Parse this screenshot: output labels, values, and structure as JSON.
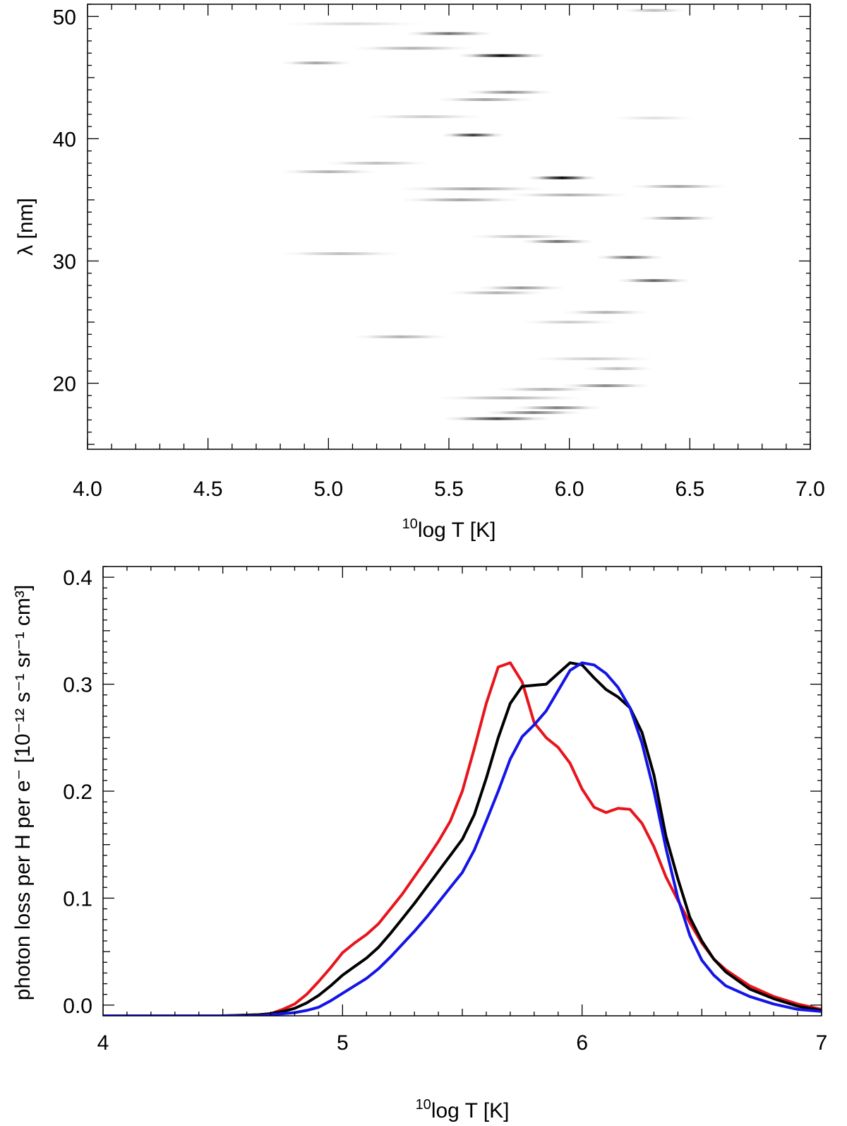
{
  "chart_data": [
    {
      "type": "heatmap",
      "title": "",
      "xlabel": {
        "superscript": "10",
        "text": "log T [K]"
      },
      "ylabel": "λ [nm]",
      "xlim": [
        4.0,
        7.0
      ],
      "ylim": [
        14.6,
        51.0
      ],
      "x_tick_labels": [
        "4.0",
        "4.5",
        "5.0",
        "5.5",
        "6.0",
        "6.5",
        "7.0"
      ],
      "x_ticks": [
        4.0,
        4.5,
        5.0,
        5.5,
        6.0,
        6.5,
        7.0
      ],
      "y_tick_labels": [
        "20",
        "30",
        "40",
        "50"
      ],
      "y_ticks": [
        20,
        30,
        40,
        50
      ],
      "colormap": "white-to-black (reversed gray)",
      "emission_lines": [
        {
          "wavelength": 50.5,
          "t_center": 6.35,
          "t_width": 0.14,
          "intensity": 0.25
        },
        {
          "wavelength": 49.4,
          "t_center": 5.1,
          "t_width": 0.3,
          "intensity": 0.15
        },
        {
          "wavelength": 48.6,
          "t_center": 5.5,
          "t_width": 0.18,
          "intensity": 0.55
        },
        {
          "wavelength": 47.4,
          "t_center": 5.35,
          "t_width": 0.25,
          "intensity": 0.3
        },
        {
          "wavelength": 46.8,
          "t_center": 5.72,
          "t_width": 0.18,
          "intensity": 0.95
        },
        {
          "wavelength": 46.2,
          "t_center": 4.95,
          "t_width": 0.15,
          "intensity": 0.35
        },
        {
          "wavelength": 43.8,
          "t_center": 5.75,
          "t_width": 0.18,
          "intensity": 0.45
        },
        {
          "wavelength": 43.2,
          "t_center": 5.65,
          "t_width": 0.2,
          "intensity": 0.35
        },
        {
          "wavelength": 41.8,
          "t_center": 5.4,
          "t_width": 0.25,
          "intensity": 0.2
        },
        {
          "wavelength": 41.7,
          "t_center": 6.35,
          "t_width": 0.18,
          "intensity": 0.12
        },
        {
          "wavelength": 40.3,
          "t_center": 5.6,
          "t_width": 0.13,
          "intensity": 0.75
        },
        {
          "wavelength": 38.0,
          "t_center": 5.2,
          "t_width": 0.22,
          "intensity": 0.25
        },
        {
          "wavelength": 37.3,
          "t_center": 5.0,
          "t_width": 0.2,
          "intensity": 0.3
        },
        {
          "wavelength": 36.8,
          "t_center": 5.97,
          "t_width": 0.14,
          "intensity": 0.95
        },
        {
          "wavelength": 36.1,
          "t_center": 6.45,
          "t_width": 0.2,
          "intensity": 0.35
        },
        {
          "wavelength": 35.9,
          "t_center": 5.6,
          "t_width": 0.3,
          "intensity": 0.35
        },
        {
          "wavelength": 35.4,
          "t_center": 6.0,
          "t_width": 0.25,
          "intensity": 0.3
        },
        {
          "wavelength": 35.0,
          "t_center": 5.55,
          "t_width": 0.25,
          "intensity": 0.35
        },
        {
          "wavelength": 33.5,
          "t_center": 6.45,
          "t_width": 0.16,
          "intensity": 0.45
        },
        {
          "wavelength": 32.0,
          "t_center": 5.8,
          "t_width": 0.22,
          "intensity": 0.25
        },
        {
          "wavelength": 31.6,
          "t_center": 5.95,
          "t_width": 0.15,
          "intensity": 0.55
        },
        {
          "wavelength": 30.6,
          "t_center": 5.05,
          "t_width": 0.25,
          "intensity": 0.25
        },
        {
          "wavelength": 30.3,
          "t_center": 6.25,
          "t_width": 0.14,
          "intensity": 0.55
        },
        {
          "wavelength": 28.4,
          "t_center": 6.35,
          "t_width": 0.15,
          "intensity": 0.6
        },
        {
          "wavelength": 27.8,
          "t_center": 5.8,
          "t_width": 0.18,
          "intensity": 0.4
        },
        {
          "wavelength": 27.4,
          "t_center": 5.7,
          "t_width": 0.2,
          "intensity": 0.3
        },
        {
          "wavelength": 25.8,
          "t_center": 6.15,
          "t_width": 0.18,
          "intensity": 0.3
        },
        {
          "wavelength": 25.0,
          "t_center": 6.0,
          "t_width": 0.2,
          "intensity": 0.2
        },
        {
          "wavelength": 23.8,
          "t_center": 5.3,
          "t_width": 0.2,
          "intensity": 0.3
        },
        {
          "wavelength": 22.0,
          "t_center": 6.1,
          "t_width": 0.25,
          "intensity": 0.2
        },
        {
          "wavelength": 21.2,
          "t_center": 6.2,
          "t_width": 0.15,
          "intensity": 0.25
        },
        {
          "wavelength": 19.8,
          "t_center": 6.15,
          "t_width": 0.18,
          "intensity": 0.45
        },
        {
          "wavelength": 19.5,
          "t_center": 5.9,
          "t_width": 0.2,
          "intensity": 0.3
        },
        {
          "wavelength": 18.8,
          "t_center": 5.75,
          "t_width": 0.3,
          "intensity": 0.3
        },
        {
          "wavelength": 18.0,
          "t_center": 5.95,
          "t_width": 0.18,
          "intensity": 0.5
        },
        {
          "wavelength": 17.6,
          "t_center": 5.85,
          "t_width": 0.2,
          "intensity": 0.5
        },
        {
          "wavelength": 17.1,
          "t_center": 5.7,
          "t_width": 0.22,
          "intensity": 0.7
        }
      ]
    },
    {
      "type": "line",
      "title": "",
      "xlabel": {
        "superscript": "10",
        "text": "log T [K]"
      },
      "ylabel": "photon loss per H per e⁻ [10⁻¹² s⁻¹ sr⁻¹ cm³]",
      "xlim": [
        4.0,
        7.0
      ],
      "ylim": [
        -0.01,
        0.41
      ],
      "x_tick_labels": [
        "4",
        "5",
        "6",
        "7"
      ],
      "x_ticks": [
        4,
        5,
        6,
        7
      ],
      "y_tick_labels": [
        "0.0",
        "0.1",
        "0.2",
        "0.3",
        "0.4"
      ],
      "y_ticks": [
        0.0,
        0.1,
        0.2,
        0.3,
        0.4
      ],
      "x": [
        4.0,
        4.5,
        4.65,
        4.7,
        4.75,
        4.8,
        4.85,
        4.9,
        4.95,
        5.0,
        5.05,
        5.1,
        5.15,
        5.2,
        5.25,
        5.3,
        5.35,
        5.4,
        5.45,
        5.5,
        5.55,
        5.6,
        5.65,
        5.7,
        5.75,
        5.8,
        5.85,
        5.9,
        5.95,
        6.0,
        6.05,
        6.1,
        6.15,
        6.2,
        6.25,
        6.3,
        6.35,
        6.4,
        6.45,
        6.5,
        6.55,
        6.6,
        6.7,
        6.8,
        6.9,
        7.0
      ],
      "series": [
        {
          "name": "red",
          "color": "#e8141c",
          "values": [
            -0.01,
            -0.01,
            -0.009,
            -0.008,
            -0.004,
            0.001,
            0.01,
            0.022,
            0.035,
            0.049,
            0.058,
            0.066,
            0.076,
            0.09,
            0.104,
            0.12,
            0.136,
            0.153,
            0.172,
            0.2,
            0.24,
            0.282,
            0.316,
            0.32,
            0.302,
            0.264,
            0.25,
            0.241,
            0.226,
            0.202,
            0.185,
            0.18,
            0.184,
            0.183,
            0.17,
            0.148,
            0.12,
            0.098,
            0.077,
            0.058,
            0.043,
            0.033,
            0.018,
            0.008,
            0.001,
            -0.004
          ]
        },
        {
          "name": "black",
          "color": "#000000",
          "values": [
            -0.01,
            -0.01,
            -0.009,
            -0.008,
            -0.006,
            -0.003,
            0.002,
            0.009,
            0.018,
            0.028,
            0.036,
            0.044,
            0.054,
            0.067,
            0.081,
            0.095,
            0.11,
            0.125,
            0.14,
            0.155,
            0.178,
            0.212,
            0.25,
            0.282,
            0.298,
            0.299,
            0.3,
            0.31,
            0.32,
            0.318,
            0.306,
            0.295,
            0.288,
            0.278,
            0.255,
            0.215,
            0.158,
            0.118,
            0.082,
            0.06,
            0.043,
            0.031,
            0.015,
            0.006,
            -0.001,
            -0.005
          ]
        },
        {
          "name": "blue",
          "color": "#1414e6",
          "values": [
            -0.01,
            -0.01,
            -0.01,
            -0.009,
            -0.008,
            -0.007,
            -0.005,
            -0.002,
            0.004,
            0.011,
            0.018,
            0.025,
            0.034,
            0.045,
            0.057,
            0.069,
            0.082,
            0.096,
            0.11,
            0.124,
            0.145,
            0.172,
            0.2,
            0.23,
            0.251,
            0.262,
            0.275,
            0.294,
            0.313,
            0.32,
            0.318,
            0.31,
            0.297,
            0.278,
            0.245,
            0.2,
            0.147,
            0.1,
            0.065,
            0.042,
            0.028,
            0.018,
            0.008,
            0.001,
            -0.004,
            -0.006
          ]
        }
      ]
    }
  ]
}
